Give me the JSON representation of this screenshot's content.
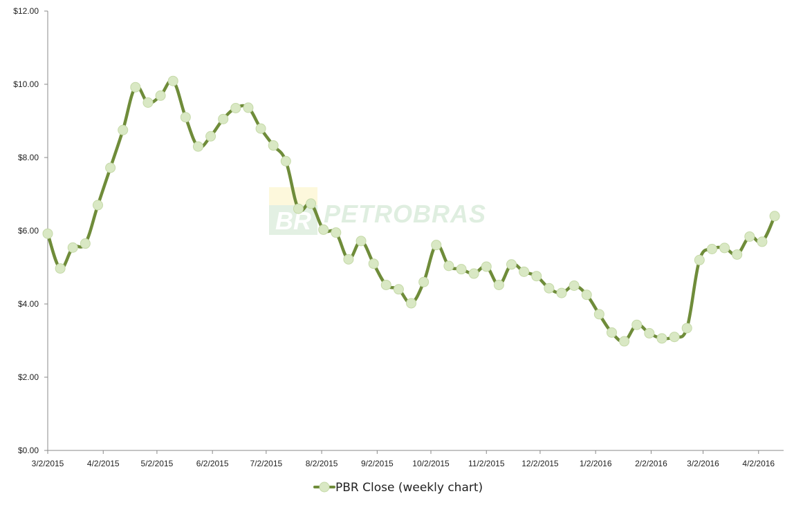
{
  "colors": {
    "line": "#6f8c3a",
    "marker_fill": "#d9e8c4",
    "marker_stroke": "#c5d9a8",
    "axis": "#888888",
    "watermark_green": "#dfeee0",
    "watermark_yellow": "#fdf8dc"
  },
  "watermark": {
    "logo_text": "BR",
    "text": "PETROBRAS"
  },
  "chart_data": {
    "type": "line",
    "title": "",
    "xlabel": "",
    "ylabel": "",
    "ylim": [
      0,
      12
    ],
    "yticks": [
      0,
      2,
      4,
      6,
      8,
      10,
      12
    ],
    "ytick_labels": [
      "$0.00",
      "$2.00",
      "$4.00",
      "$6.00",
      "$8.00",
      "$10.00",
      "$12.00"
    ],
    "xlim": [
      "2015-03-02",
      "2016-04-16"
    ],
    "xticks": [
      "2015-03-02",
      "2015-04-02",
      "2015-05-02",
      "2015-06-02",
      "2015-07-02",
      "2015-08-02",
      "2015-09-02",
      "2015-10-02",
      "2015-11-02",
      "2015-12-02",
      "2016-01-02",
      "2016-02-02",
      "2016-03-02",
      "2016-04-02"
    ],
    "xtick_labels": [
      "3/2/2015",
      "4/2/2015",
      "5/2/2015",
      "6/2/2015",
      "7/2/2015",
      "8/2/2015",
      "9/2/2015",
      "10/2/2015",
      "11/2/2015",
      "12/2/2015",
      "1/2/2016",
      "2/2/2016",
      "3/2/2016",
      "4/2/2016"
    ],
    "grid": false,
    "legend_position": "bottom",
    "series": [
      {
        "name": "PBR Close (weekly chart)",
        "x": [
          "2015-03-02",
          "2015-03-09",
          "2015-03-16",
          "2015-03-23",
          "2015-03-30",
          "2015-04-06",
          "2015-04-13",
          "2015-04-20",
          "2015-04-27",
          "2015-05-04",
          "2015-05-11",
          "2015-05-18",
          "2015-05-25",
          "2015-06-01",
          "2015-06-08",
          "2015-06-15",
          "2015-06-22",
          "2015-06-29",
          "2015-07-06",
          "2015-07-13",
          "2015-07-20",
          "2015-07-27",
          "2015-08-03",
          "2015-08-10",
          "2015-08-17",
          "2015-08-24",
          "2015-08-31",
          "2015-09-07",
          "2015-09-14",
          "2015-09-21",
          "2015-09-28",
          "2015-10-05",
          "2015-10-12",
          "2015-10-19",
          "2015-10-26",
          "2015-11-02",
          "2015-11-09",
          "2015-11-16",
          "2015-11-23",
          "2015-11-30",
          "2015-12-07",
          "2015-12-14",
          "2015-12-21",
          "2015-12-28",
          "2016-01-04",
          "2016-01-11",
          "2016-01-18",
          "2016-01-25",
          "2016-02-01",
          "2016-02-08",
          "2016-02-15",
          "2016-02-22",
          "2016-02-29",
          "2016-03-07",
          "2016-03-14",
          "2016-03-21",
          "2016-03-28",
          "2016-04-04",
          "2016-04-11"
        ],
        "values": [
          5.92,
          4.97,
          5.54,
          5.65,
          6.7,
          7.72,
          8.75,
          9.92,
          9.5,
          9.69,
          10.09,
          9.1,
          8.3,
          8.58,
          9.05,
          9.35,
          9.36,
          8.79,
          8.33,
          7.9,
          6.6,
          6.74,
          6.03,
          5.95,
          5.22,
          5.72,
          5.1,
          4.52,
          4.4,
          4.02,
          4.6,
          5.61,
          5.04,
          4.95,
          4.83,
          5.02,
          4.52,
          5.08,
          4.88,
          4.76,
          4.43,
          4.3,
          4.5,
          4.25,
          3.72,
          3.22,
          2.98,
          3.43,
          3.2,
          3.06,
          3.1,
          3.34,
          5.2,
          5.5,
          5.53,
          5.35,
          5.84,
          5.7,
          6.4
        ]
      }
    ]
  }
}
